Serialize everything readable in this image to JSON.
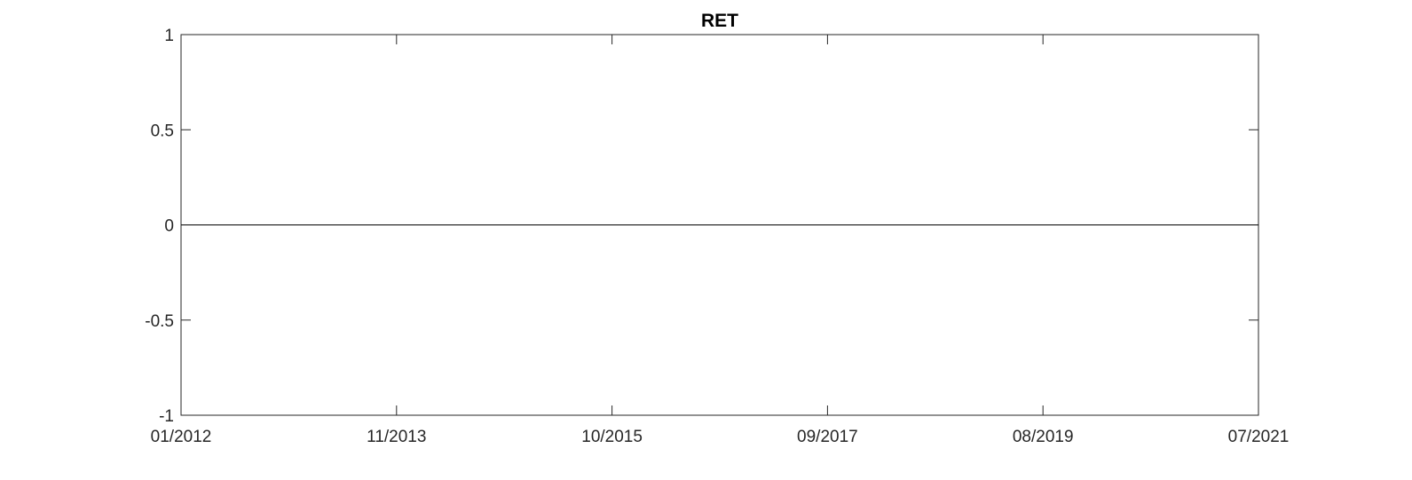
{
  "chart_data": {
    "type": "line",
    "title": "RET",
    "xlabel": "",
    "ylabel": "",
    "x_tick_labels": [
      "01/2012",
      "11/2013",
      "10/2015",
      "09/2017",
      "08/2019",
      "07/2021"
    ],
    "y_tick_labels": [
      "1",
      "0.5",
      "0",
      "-0.5",
      "-1"
    ],
    "y_ticks": [
      1,
      0.5,
      0,
      -0.5,
      -1
    ],
    "xlim": [
      "01/2012",
      "07/2021"
    ],
    "ylim": [
      -1,
      1
    ],
    "grid": false,
    "legend": "none",
    "series": [
      {
        "x": [
          "01/2012",
          "07/2021"
        ],
        "y": [
          0,
          0
        ]
      }
    ],
    "colors": {
      "axes": "#262626",
      "series": "#000000"
    }
  }
}
